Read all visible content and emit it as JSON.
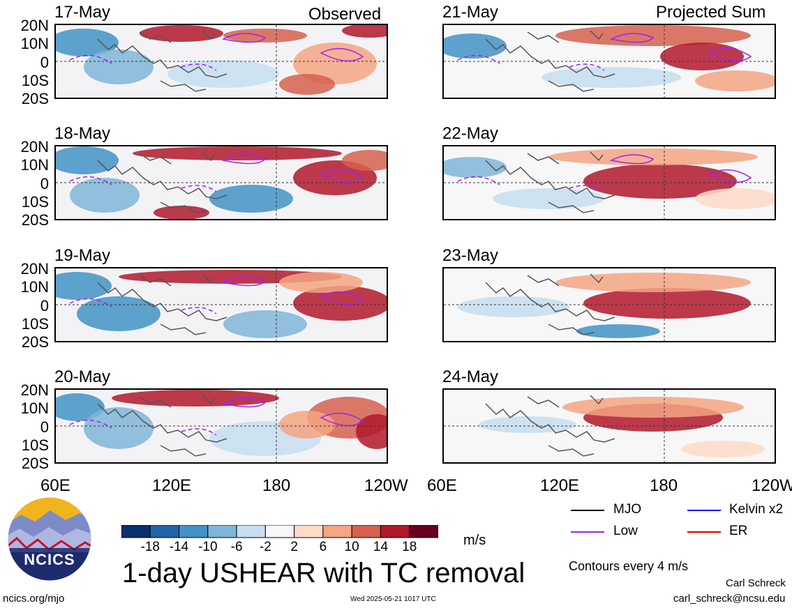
{
  "observed_label": "Observed",
  "projected_label": "Projected Sum",
  "observed_dates": [
    "17-May",
    "18-May",
    "19-May",
    "20-May"
  ],
  "projected_dates": [
    "21-May",
    "22-May",
    "23-May",
    "24-May"
  ],
  "lat_labels": [
    "20N",
    "10N",
    "0",
    "10S",
    "20S"
  ],
  "lon_labels": [
    "60E",
    "120E",
    "180",
    "120W"
  ],
  "colorbar": {
    "ticks": [
      "-18",
      "-14",
      "-10",
      "-6",
      "-2",
      "2",
      "6",
      "10",
      "14",
      "18"
    ],
    "colors": [
      "#08306b",
      "#1f64a8",
      "#4292c6",
      "#7fb5d8",
      "#c6def0",
      "#f7f7f7",
      "#fddbc7",
      "#f4a582",
      "#d6604d",
      "#b2182b",
      "#67001f"
    ],
    "units": "m/s"
  },
  "legend": [
    {
      "label": "MJO",
      "color": "#000000"
    },
    {
      "label": "Kelvin x2",
      "color": "#0000ff"
    },
    {
      "label": "Low",
      "color": "#a020f0"
    },
    {
      "label": "ER",
      "color": "#dd0000"
    }
  ],
  "contours_note": "Contours every 4 m/s",
  "title": "1-day USHEAR with TC removal",
  "logo_text": "NCICS",
  "website": "ncics.org/mjo",
  "timestamp": "Wed 2025-05-21 1017 UTC",
  "author": "Carl Schreck",
  "email": "carl_schreck@ncsu.edu"
}
